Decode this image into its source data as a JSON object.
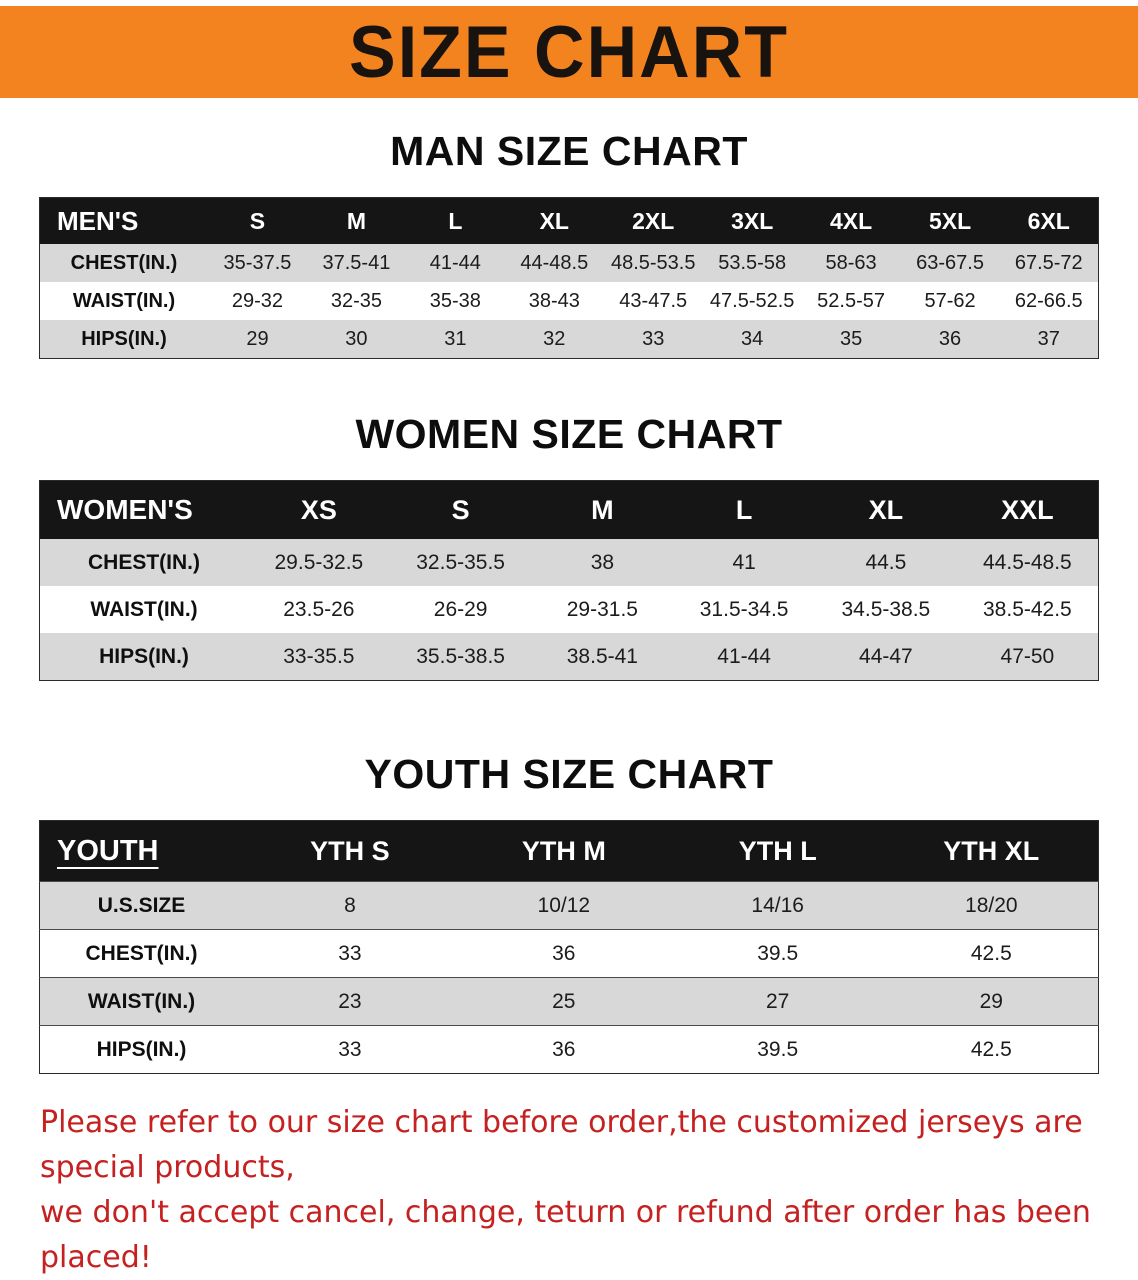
{
  "banner": {
    "title": "SIZE CHART"
  },
  "men_section": {
    "heading": "MAN SIZE CHART"
  },
  "women_section": {
    "heading": "WOMEN SIZE CHART"
  },
  "youth_section": {
    "heading": "YOUTH SIZE CHART"
  },
  "men_table": {
    "header": [
      "MEN'S",
      "S",
      "M",
      "L",
      "XL",
      "2XL",
      "3XL",
      "4XL",
      "5XL",
      "6XL"
    ],
    "rows": [
      [
        "CHEST(IN.)",
        "35-37.5",
        "37.5-41",
        "41-44",
        "44-48.5",
        "48.5-53.5",
        "53.5-58",
        "58-63",
        "63-67.5",
        "67.5-72"
      ],
      [
        "WAIST(IN.)",
        "29-32",
        "32-35",
        "35-38",
        "38-43",
        "43-47.5",
        "47.5-52.5",
        "52.5-57",
        "57-62",
        "62-66.5"
      ],
      [
        "HIPS(IN.)",
        "29",
        "30",
        "31",
        "32",
        "33",
        "34",
        "35",
        "36",
        "37"
      ]
    ]
  },
  "women_table": {
    "header": [
      "WOMEN'S",
      "XS",
      "S",
      "M",
      "L",
      "XL",
      "XXL"
    ],
    "rows": [
      [
        "CHEST(IN.)",
        "29.5-32.5",
        "32.5-35.5",
        "38",
        "41",
        "44.5",
        "44.5-48.5"
      ],
      [
        "WAIST(IN.)",
        "23.5-26",
        "26-29",
        "29-31.5",
        "31.5-34.5",
        "34.5-38.5",
        "38.5-42.5"
      ],
      [
        "HIPS(IN.)",
        "33-35.5",
        "35.5-38.5",
        "38.5-41",
        "41-44",
        "44-47",
        "47-50"
      ]
    ]
  },
  "youth_table": {
    "header": [
      "YOUTH",
      "YTH S",
      "YTH M",
      "YTH L",
      "YTH XL"
    ],
    "rows": [
      [
        "U.S.SIZE",
        "8",
        "10/12",
        "14/16",
        "18/20"
      ],
      [
        "CHEST(IN.)",
        "33",
        "36",
        "39.5",
        "42.5"
      ],
      [
        "WAIST(IN.)",
        "23",
        "25",
        "27",
        "29"
      ],
      [
        "HIPS(IN.)",
        "33",
        "36",
        "39.5",
        "42.5"
      ]
    ]
  },
  "disclaimer": {
    "line1": "Please refer to our size chart before order,the customized jerseys are special products,",
    "line2": "we don't accept cancel, change, teturn or refund after order has been placed!"
  },
  "colors": {
    "banner_bg": "#f3831f",
    "header_bg": "#151515",
    "stripe": "#d8d8d8",
    "disclaimer_color": "#c62121"
  }
}
